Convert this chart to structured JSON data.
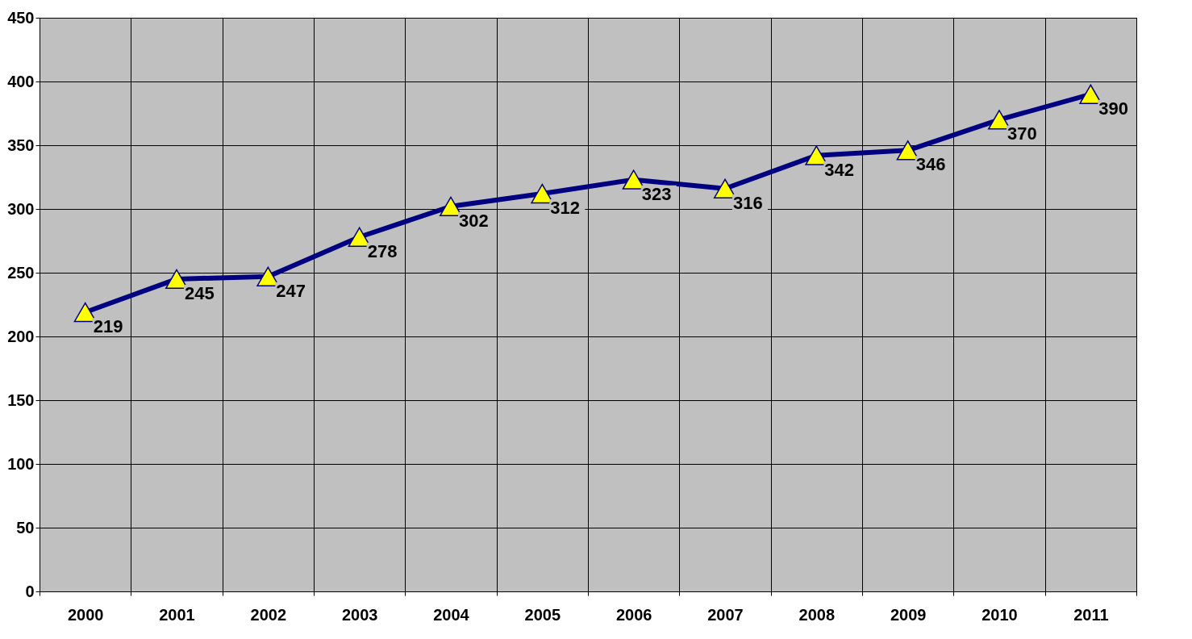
{
  "chart_data": {
    "type": "line",
    "categories": [
      "2000",
      "2001",
      "2002",
      "2003",
      "2004",
      "2005",
      "2006",
      "2007",
      "2008",
      "2009",
      "2010",
      "2011"
    ],
    "series": [
      {
        "color": "#000080",
        "values": [
          219,
          245,
          247,
          278,
          302,
          312,
          323,
          316,
          342,
          346,
          370,
          390
        ]
      }
    ],
    "ylim": [
      0,
      450
    ],
    "yticks": [
      0,
      50,
      100,
      150,
      200,
      250,
      300,
      350,
      400,
      450
    ],
    "grid": true,
    "marker": "triangle",
    "line_style": "solid",
    "data_labels": true
  }
}
